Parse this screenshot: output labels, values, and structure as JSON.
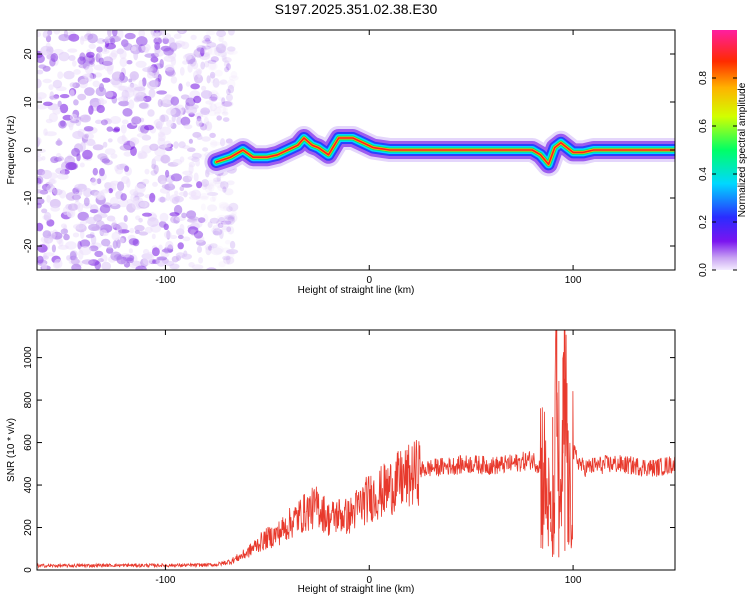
{
  "title": "S197.2025.351.02.38.E30",
  "chart_data": [
    {
      "type": "heatmap",
      "xlabel": "Height of straight line (km)",
      "ylabel": "Frequency (Hz)",
      "xlim": [
        -163,
        150
      ],
      "ylim": [
        -25,
        25
      ],
      "xticks": [
        -100,
        0,
        100
      ],
      "yticks": [
        -20,
        -10,
        0,
        10,
        20
      ],
      "noise_region_x": [
        -163,
        -72
      ],
      "ridge": [
        {
          "x": -75,
          "y": -2.5
        },
        {
          "x": -68,
          "y": -1.5
        },
        {
          "x": -62,
          "y": 0.0
        },
        {
          "x": -57,
          "y": -1.5
        },
        {
          "x": -50,
          "y": -1.5
        },
        {
          "x": -45,
          "y": -1.0
        },
        {
          "x": -40,
          "y": 0.0
        },
        {
          "x": -35,
          "y": 1.0
        },
        {
          "x": -32,
          "y": 2.5
        },
        {
          "x": -28,
          "y": 1.0
        },
        {
          "x": -25,
          "y": 0.5
        },
        {
          "x": -20,
          "y": -1.0
        },
        {
          "x": -15,
          "y": 2.5
        },
        {
          "x": -8,
          "y": 2.5
        },
        {
          "x": -3,
          "y": 1.5
        },
        {
          "x": 2,
          "y": 0.5
        },
        {
          "x": 10,
          "y": 0.0
        },
        {
          "x": 30,
          "y": 0.0
        },
        {
          "x": 60,
          "y": 0.0
        },
        {
          "x": 80,
          "y": 0.0
        },
        {
          "x": 84,
          "y": -1.0
        },
        {
          "x": 88,
          "y": -3.0
        },
        {
          "x": 91,
          "y": 0.5
        },
        {
          "x": 94,
          "y": 1.5
        },
        {
          "x": 97,
          "y": 0.5
        },
        {
          "x": 100,
          "y": -0.5
        },
        {
          "x": 105,
          "y": -0.5
        },
        {
          "x": 110,
          "y": 0.0
        },
        {
          "x": 120,
          "y": 0.0
        },
        {
          "x": 150,
          "y": 0.0
        }
      ],
      "colorbar": {
        "label": "Normalized spectral amplitude",
        "range": [
          0.0,
          1.0
        ],
        "ticks": [
          0.0,
          0.2,
          0.4,
          0.6,
          0.8
        ],
        "tick_labels": [
          "0.0",
          "0.2",
          "0.4",
          "0.6",
          "0.8"
        ]
      }
    },
    {
      "type": "line",
      "xlabel": "Height of straight line (km)",
      "ylabel": "SNR (10 * v/v)",
      "xlim": [
        -163,
        150
      ],
      "ylim": [
        0,
        1130
      ],
      "xticks": [
        -100,
        0,
        100
      ],
      "yticks": [
        0,
        200,
        400,
        600,
        800,
        1000
      ],
      "color": "#e8392c",
      "series": [
        {
          "name": "SNR",
          "x": [
            -163,
            -150,
            -130,
            -110,
            -90,
            -75,
            -68,
            -60,
            -55,
            -50,
            -45,
            -40,
            -35,
            -30,
            -25,
            -20,
            -15,
            -10,
            -5,
            0,
            5,
            10,
            15,
            20,
            25,
            30,
            40,
            50,
            60,
            70,
            80,
            85,
            88,
            90,
            92,
            94,
            96,
            98,
            100,
            105,
            110,
            120,
            130,
            140,
            150
          ],
          "y": [
            20,
            20,
            22,
            22,
            22,
            25,
            40,
            80,
            120,
            150,
            170,
            210,
            250,
            280,
            300,
            240,
            260,
            250,
            300,
            340,
            360,
            390,
            420,
            440,
            470,
            480,
            490,
            500,
            490,
            500,
            520,
            480,
            300,
            150,
            800,
            200,
            900,
            250,
            550,
            480,
            490,
            500,
            490,
            480,
            500
          ]
        }
      ],
      "spikes": [
        {
          "x": 92,
          "y": 1130
        },
        {
          "x": 93,
          "y": 60
        },
        {
          "x": 95,
          "y": 1000
        },
        {
          "x": 97,
          "y": 880
        },
        {
          "x": 96,
          "y": 90
        },
        {
          "x": 90,
          "y": 720
        },
        {
          "x": 89,
          "y": 180
        },
        {
          "x": 98,
          "y": 130
        }
      ]
    }
  ]
}
